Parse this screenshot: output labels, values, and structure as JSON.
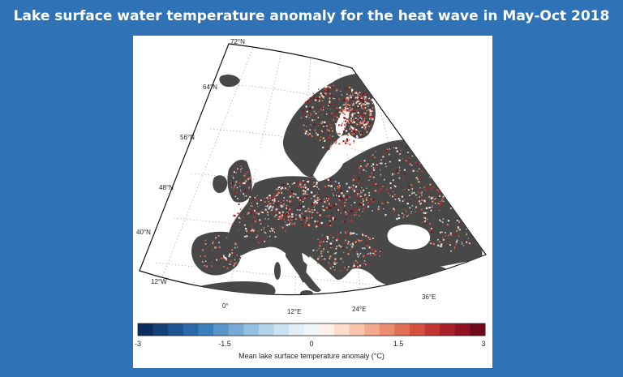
{
  "title": "Lake surface water temperature anomaly for the heat wave in May-Oct 2018",
  "map": {
    "lat_labels": [
      "72°N",
      "64°N",
      "56°N",
      "48°N",
      "40°N"
    ],
    "lon_labels": [
      "12°W",
      "0°",
      "12°E",
      "24°E",
      "36°E"
    ],
    "land_color": "#484848",
    "sea_color": "#ffffff"
  },
  "colorbar": {
    "ticks": [
      "-3",
      "-1.5",
      "0",
      "1.5",
      "3"
    ],
    "label": "Mean lake surface temperature anomaly (°C)",
    "colors": [
      "#0b2d5e",
      "#14407a",
      "#1f5593",
      "#2a69aa",
      "#3b7fbc",
      "#5895c8",
      "#77abd4",
      "#95c0df",
      "#b2d3e9",
      "#cde2f0",
      "#e2eef6",
      "#f3f6f9",
      "#fdf0ea",
      "#fbdccc",
      "#f8c4ac",
      "#f2a98c",
      "#ea8d6e",
      "#df7053",
      "#d2523f",
      "#c03632",
      "#a82128",
      "#8e1221",
      "#6f0a1b"
    ]
  },
  "lake_colors": [
    "#6f0a1b",
    "#a82128",
    "#c03632",
    "#d2523f",
    "#df7053",
    "#ea8d6e",
    "#f2a98c",
    "#f8c4ac",
    "#fbdccc",
    "#fdf0ea",
    "#f3f6f9",
    "#cde2f0"
  ]
}
